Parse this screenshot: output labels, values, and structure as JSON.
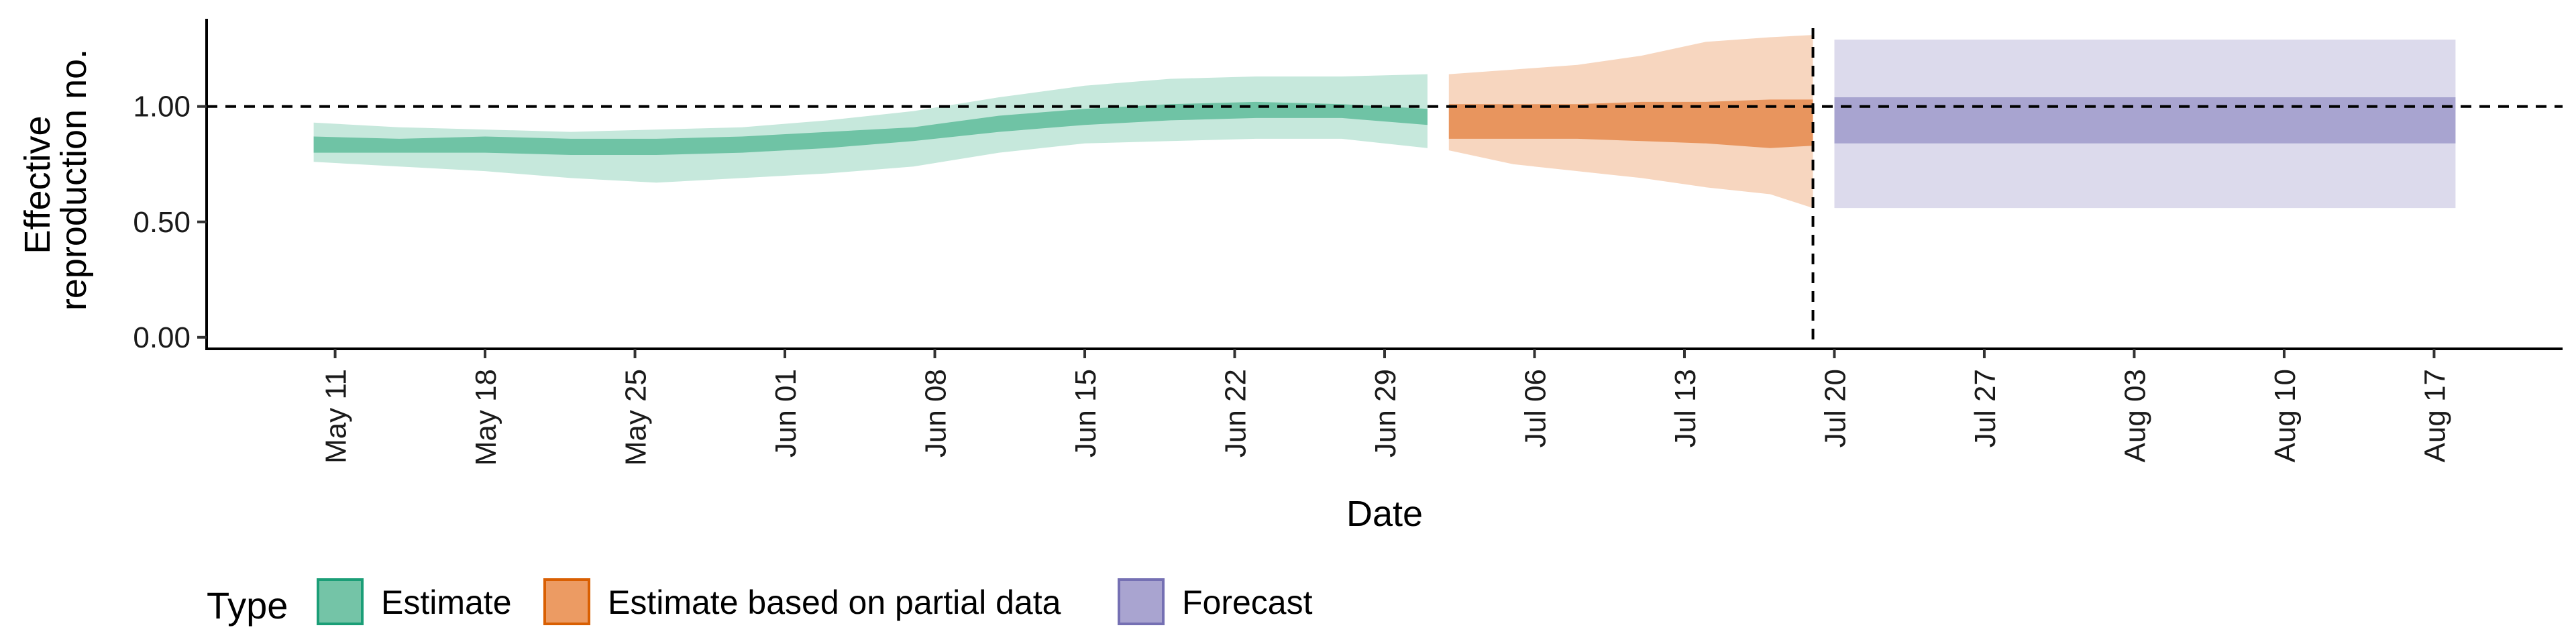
{
  "chart_data": {
    "type": "area",
    "xlabel": "Date",
    "ylabel_lines": [
      "Effective",
      "reproduction no."
    ],
    "x_ticks": [
      "2020-05-11",
      "2020-05-18",
      "2020-05-25",
      "2020-06-01",
      "2020-06-08",
      "2020-06-15",
      "2020-06-22",
      "2020-06-29",
      "2020-07-06",
      "2020-07-13",
      "2020-07-20",
      "2020-07-27",
      "2020-08-03",
      "2020-08-10",
      "2020-08-17"
    ],
    "x_tick_labels": [
      "May 11",
      "May 18",
      "May 25",
      "Jun 01",
      "Jun 08",
      "Jun 15",
      "Jun 22",
      "Jun 29",
      "Jul 06",
      "Jul 13",
      "Jul 20",
      "Jul 27",
      "Aug 03",
      "Aug 10",
      "Aug 17"
    ],
    "x_range": [
      "2020-05-05",
      "2020-08-23"
    ],
    "y_ticks": [
      0.0,
      0.5,
      1.0
    ],
    "y_tick_labels": [
      "0.00",
      "0.50",
      "1.00"
    ],
    "ylim": [
      -0.05,
      1.38
    ],
    "reference_hline": 1.0,
    "reference_vline": "2020-07-19",
    "grid": false,
    "legend": {
      "title": "Type",
      "position": "bottom-left",
      "entries": [
        {
          "label": "Estimate",
          "fill": "#74c4a7",
          "stroke": "#1b9e77"
        },
        {
          "label": "Estimate based on partial data",
          "fill": "#ec9b63",
          "stroke": "#d95f02"
        },
        {
          "label": "Forecast",
          "fill": "#a9a4d0",
          "stroke": "#7570b3"
        }
      ]
    },
    "series": [
      {
        "name": "Estimate",
        "outer_color": "#c6e8dc",
        "inner_color": "#6fc3a5",
        "x": [
          "2020-05-10",
          "2020-05-14",
          "2020-05-18",
          "2020-05-22",
          "2020-05-26",
          "2020-05-30",
          "2020-06-03",
          "2020-06-07",
          "2020-06-11",
          "2020-06-15",
          "2020-06-19",
          "2020-06-23",
          "2020-06-27",
          "2020-07-01"
        ],
        "outer_low": [
          0.76,
          0.74,
          0.72,
          0.69,
          0.67,
          0.69,
          0.71,
          0.74,
          0.8,
          0.84,
          0.85,
          0.86,
          0.86,
          0.82
        ],
        "outer_high": [
          0.93,
          0.91,
          0.9,
          0.89,
          0.9,
          0.91,
          0.94,
          0.98,
          1.04,
          1.09,
          1.12,
          1.13,
          1.13,
          1.14
        ],
        "inner_low": [
          0.8,
          0.8,
          0.8,
          0.79,
          0.79,
          0.8,
          0.82,
          0.85,
          0.89,
          0.92,
          0.94,
          0.95,
          0.95,
          0.92
        ],
        "inner_high": [
          0.87,
          0.86,
          0.87,
          0.86,
          0.86,
          0.87,
          0.89,
          0.91,
          0.96,
          0.99,
          1.01,
          1.02,
          1.01,
          0.99
        ]
      },
      {
        "name": "Estimate based on partial data",
        "outer_color": "#f7d6bf",
        "inner_color": "#e8955e",
        "x": [
          "2020-07-02",
          "2020-07-05",
          "2020-07-08",
          "2020-07-11",
          "2020-07-14",
          "2020-07-17",
          "2020-07-19"
        ],
        "outer_low": [
          0.81,
          0.75,
          0.72,
          0.69,
          0.65,
          0.62,
          0.56
        ],
        "outer_high": [
          1.14,
          1.16,
          1.18,
          1.22,
          1.28,
          1.3,
          1.31
        ],
        "inner_low": [
          0.86,
          0.86,
          0.86,
          0.85,
          0.84,
          0.82,
          0.83
        ],
        "inner_high": [
          1.01,
          1.01,
          1.01,
          1.02,
          1.02,
          1.03,
          1.03
        ]
      },
      {
        "name": "Forecast",
        "outer_color": "#dcdaec",
        "inner_color": "#a8a4d0",
        "x": [
          "2020-07-20",
          "2020-08-18"
        ],
        "outer_low": [
          0.56,
          0.56
        ],
        "outer_high": [
          1.29,
          1.29
        ],
        "inner_low": [
          0.84,
          0.84
        ],
        "inner_high": [
          1.04,
          1.04
        ]
      }
    ]
  }
}
